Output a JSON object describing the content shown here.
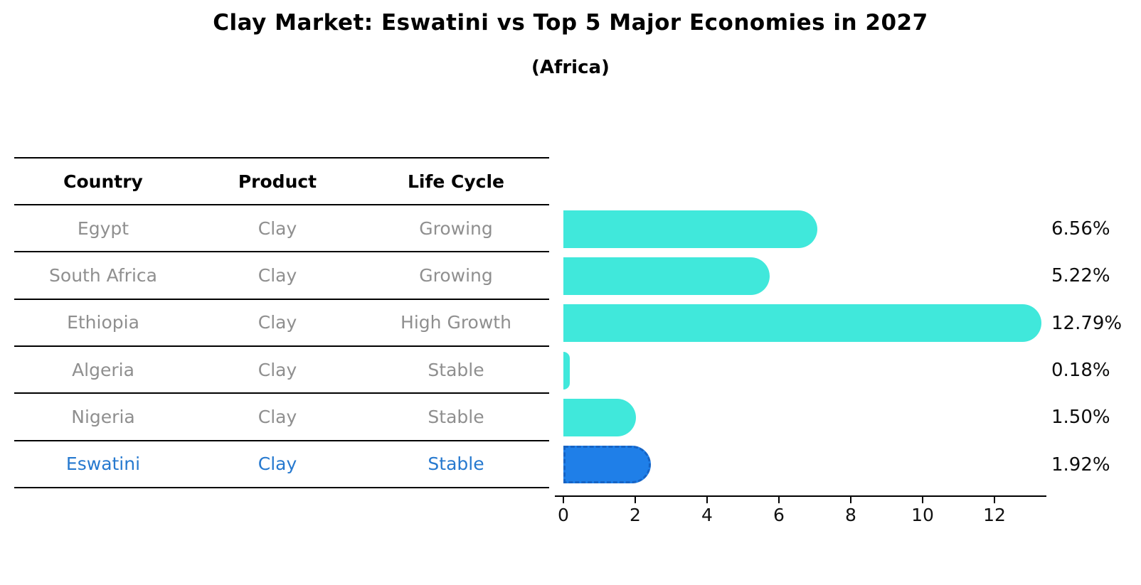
{
  "title": "Clay Market: Eswatini vs Top 5 Major Economies in 2027",
  "subtitle": "(Africa)",
  "table": {
    "headers": [
      "Country",
      "Product",
      "Life Cycle"
    ],
    "rows": [
      {
        "country": "Egypt",
        "product": "Clay",
        "life_cycle": "Growing"
      },
      {
        "country": "South Africa",
        "product": "Clay",
        "life_cycle": "Growing"
      },
      {
        "country": "Ethiopia",
        "product": "Clay",
        "life_cycle": "High Growth"
      },
      {
        "country": "Algeria",
        "product": "Clay",
        "life_cycle": "Stable"
      },
      {
        "country": "Nigeria",
        "product": "Clay",
        "life_cycle": "Stable"
      },
      {
        "country": "Eswatini",
        "product": "Clay",
        "life_cycle": "Stable"
      }
    ],
    "highlight_row": "Eswatini"
  },
  "chart_data": {
    "type": "bar",
    "orientation": "horizontal",
    "categories": [
      "Egypt",
      "South Africa",
      "Ethiopia",
      "Algeria",
      "Nigeria",
      "Eswatini"
    ],
    "values": [
      6.56,
      5.22,
      12.79,
      0.18,
      1.5,
      1.92
    ],
    "value_labels": [
      "6.56%",
      "5.22%",
      "12.79%",
      "0.18%",
      "1.50%",
      "1.92%"
    ],
    "title": "Clay Market: Eswatini vs Top 5 Major Economies in 2027",
    "subtitle": "(Africa)",
    "xlabel": "",
    "ylabel": "",
    "xticks": [
      0,
      2,
      4,
      6,
      8,
      10,
      12
    ],
    "xlim": [
      0,
      13.5
    ],
    "grid": false,
    "legend": false,
    "highlight_index": 5
  },
  "colors": {
    "bar": "#40e8db",
    "highlight_bar": "#1f7fe8",
    "highlight_bar_border": "#1663c4",
    "highlight_text": "#2679cf",
    "row_text": "#8f8f8f",
    "axis": "#000000",
    "title_text": "#000000"
  }
}
